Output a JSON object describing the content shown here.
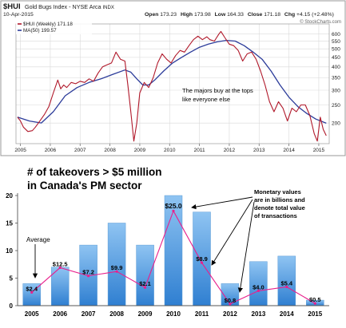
{
  "colors": {
    "hui_line": "#b0182a",
    "ma_line": "#2c3c9a",
    "grid": "#d9d9d9",
    "bar_top": "#8fc4f2",
    "bar_bottom": "#2f7fd1",
    "bar_edge": "#5b9bd5",
    "avg_line": "#e8208c",
    "title_text": "#000000",
    "symbol_text": "#1a1a1a"
  },
  "chart_data": [
    {
      "type": "line",
      "symbol": "$HUI",
      "title": "Gold Bugs Index - NYSE Arca",
      "title_suffix": "INDX",
      "date": "10-Apr-2015",
      "ohlc": {
        "open_label": "Open",
        "open": "173.23",
        "high_label": "High",
        "high": "173.98",
        "low_label": "Low",
        "low": "164.33",
        "close_label": "Close",
        "close": "171.18",
        "chg_label": "Chg",
        "chg": "+4.15 (+2.48%)"
      },
      "watermark": "© StockCharts.com",
      "annotation": [
        "The majors buy at the tops",
        "like everyone else"
      ],
      "legend": [
        {
          "label": "$HUI (Weekly) 171.18",
          "color": "#b0182a"
        },
        {
          "label": "MA(50) 199.57",
          "color": "#2c3c9a"
        }
      ],
      "x_ticks": [
        "2005",
        "2006",
        "2007",
        "2008",
        "2009",
        "2010",
        "2011",
        "2012",
        "2013",
        "2014",
        "2015"
      ],
      "xlim": [
        2004.85,
        2015.35
      ],
      "y_scale": "log",
      "ylim": [
        155,
        680
      ],
      "y_ticks": [
        200,
        250,
        300,
        350,
        400,
        450,
        500,
        550,
        600
      ],
      "y_tick_labels": [
        "200",
        "250",
        "300",
        "350",
        "400",
        "450",
        "500",
        "550",
        "600"
      ],
      "grid": true,
      "series": [
        {
          "name": "$HUI (Weekly)",
          "x": [
            2004.9,
            2005.0,
            2005.1,
            2005.25,
            2005.4,
            2005.5,
            2005.65,
            2005.8,
            2005.95,
            2006.1,
            2006.25,
            2006.35,
            2006.45,
            2006.55,
            2006.7,
            2006.85,
            2007.0,
            2007.15,
            2007.3,
            2007.45,
            2007.6,
            2007.75,
            2007.9,
            2008.05,
            2008.2,
            2008.35,
            2008.5,
            2008.6,
            2008.7,
            2008.8,
            2008.9,
            2009.0,
            2009.15,
            2009.3,
            2009.45,
            2009.6,
            2009.75,
            2009.9,
            2010.05,
            2010.2,
            2010.35,
            2010.5,
            2010.65,
            2010.8,
            2010.95,
            2011.1,
            2011.25,
            2011.35,
            2011.5,
            2011.65,
            2011.72,
            2011.85,
            2012.0,
            2012.15,
            2012.3,
            2012.45,
            2012.6,
            2012.75,
            2012.9,
            2013.05,
            2013.2,
            2013.35,
            2013.5,
            2013.65,
            2013.8,
            2013.95,
            2014.1,
            2014.25,
            2014.4,
            2014.55,
            2014.7,
            2014.85,
            2014.95,
            2015.05,
            2015.15,
            2015.25
          ],
          "values": [
            215,
            205,
            190,
            180,
            182,
            190,
            205,
            222,
            245,
            290,
            340,
            305,
            320,
            310,
            330,
            325,
            335,
            330,
            345,
            335,
            370,
            400,
            410,
            420,
            480,
            440,
            430,
            320,
            230,
            160,
            200,
            290,
            330,
            310,
            350,
            420,
            470,
            440,
            420,
            460,
            490,
            480,
            520,
            560,
            585,
            560,
            580,
            560,
            550,
            600,
            620,
            575,
            530,
            520,
            490,
            430,
            470,
            480,
            440,
            380,
            320,
            260,
            230,
            260,
            240,
            205,
            240,
            230,
            250,
            250,
            220,
            175,
            160,
            215,
            185,
            171
          ]
        },
        {
          "name": "MA(50)",
          "x": [
            2004.9,
            2005.3,
            2005.7,
            2006.1,
            2006.5,
            2006.9,
            2007.3,
            2007.7,
            2008.1,
            2008.5,
            2008.7,
            2008.9,
            2009.1,
            2009.3,
            2009.5,
            2009.8,
            2010.1,
            2010.4,
            2010.7,
            2011.0,
            2011.3,
            2011.6,
            2011.9,
            2012.2,
            2012.5,
            2012.8,
            2013.1,
            2013.4,
            2013.7,
            2014.0,
            2014.3,
            2014.6,
            2014.9,
            2015.25
          ],
          "values": [
            215,
            205,
            200,
            230,
            280,
            310,
            330,
            345,
            365,
            385,
            375,
            345,
            320,
            320,
            340,
            380,
            420,
            450,
            480,
            510,
            530,
            545,
            555,
            550,
            520,
            480,
            440,
            380,
            320,
            275,
            245,
            225,
            210,
            199.57
          ]
        }
      ]
    },
    {
      "type": "bar",
      "title_lines": [
        "# of takeovers > $5 million",
        "in Canada's PM sector"
      ],
      "categories": [
        "2005",
        "2006",
        "2007",
        "2008",
        "2009",
        "2010",
        "2011",
        "2012",
        "2013",
        "2014",
        "2015"
      ],
      "values": [
        4,
        7,
        11,
        15,
        11,
        20,
        17,
        4,
        8,
        9,
        1
      ],
      "value_labels": [
        "$2.4",
        "$12.5",
        "$7.2",
        "$9.9",
        "$2.1",
        "$25.0",
        "$8.9",
        "$0.8",
        "$4.0",
        "$5.4",
        "$0.5"
      ],
      "line_series": {
        "name": "Average",
        "values": [
          2.4,
          6.9,
          5.4,
          6.2,
          3.3,
          17.2,
          7.8,
          0.3,
          2.7,
          3.4,
          0.4
        ]
      },
      "ylim": [
        0,
        20
      ],
      "y_ticks": [
        0,
        5,
        10,
        15,
        20
      ],
      "y_tick_labels": [
        "0",
        "5",
        "10",
        "15",
        "20"
      ],
      "grid": false,
      "average_label": "Average",
      "callout": [
        "Monetary values",
        "are in billions and",
        "denote total value",
        "of transactions"
      ]
    }
  ]
}
